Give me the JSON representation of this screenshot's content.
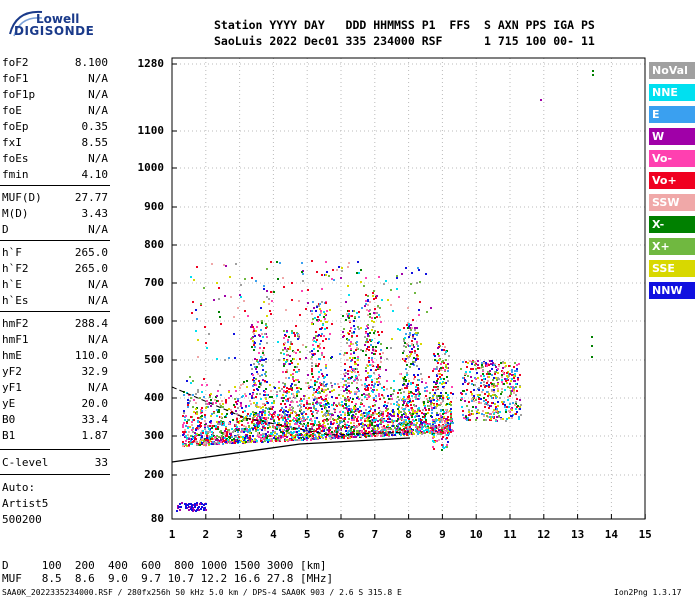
{
  "logo": {
    "line1": "Lowell",
    "line2": "DIGISONDE"
  },
  "header": {
    "row1": "Station YYYY DAY   DDD HHMMSS P1  FFS  S AXN PPS IGA PS",
    "row2": "SaoLuis 2022 Dec01 335 234000 RSF      1 715 100 00- 11"
  },
  "params": [
    {
      "k": "foF2",
      "v": "8.100"
    },
    {
      "k": "foF1",
      "v": "N/A"
    },
    {
      "k": "foF1p",
      "v": "N/A"
    },
    {
      "k": "foE",
      "v": "N/A"
    },
    {
      "k": "foEp",
      "v": "0.35"
    },
    {
      "k": "fxI",
      "v": "8.55"
    },
    {
      "k": "foEs",
      "v": "N/A"
    },
    {
      "k": "fmin",
      "v": "4.10"
    },
    {
      "k": "MUF(D)",
      "v": "27.77"
    },
    {
      "k": "M(D)",
      "v": "3.43"
    },
    {
      "k": "D",
      "v": "N/A"
    },
    {
      "k": "h`F",
      "v": "265.0"
    },
    {
      "k": "h`F2",
      "v": "265.0"
    },
    {
      "k": "h`E",
      "v": "N/A"
    },
    {
      "k": "h`Es",
      "v": "N/A"
    },
    {
      "k": "hmF2",
      "v": "288.4"
    },
    {
      "k": "hmF1",
      "v": "N/A"
    },
    {
      "k": "hmE",
      "v": "110.0"
    },
    {
      "k": "yF2",
      "v": "32.9"
    },
    {
      "k": "yF1",
      "v": "N/A"
    },
    {
      "k": "yE",
      "v": "20.0"
    },
    {
      "k": "B0",
      "v": "33.4"
    },
    {
      "k": "B1",
      "v": "1.87"
    },
    {
      "k": "C-level",
      "v": "33"
    }
  ],
  "auto": {
    "line1": "Auto:",
    "line2": "Artist5",
    "line3": "500200"
  },
  "legend": [
    {
      "label": "NoVal",
      "color": "#a0a0a0"
    },
    {
      "label": "NNE",
      "color": "#00e0f0"
    },
    {
      "label": "E",
      "color": "#3aa0f0"
    },
    {
      "label": "W",
      "color": "#a000a8"
    },
    {
      "label": "Vo-",
      "color": "#ff40b0"
    },
    {
      "label": "Vo+",
      "color": "#f00020"
    },
    {
      "label": "SSW",
      "color": "#f0a8a8"
    },
    {
      "label": "X-",
      "color": "#008000"
    },
    {
      "label": "X+",
      "color": "#70b840"
    },
    {
      "label": "SSE",
      "color": "#d8d800"
    },
    {
      "label": "NNW",
      "color": "#1010e0"
    }
  ],
  "axes": {
    "y_ticks": [
      "1280",
      "1100",
      "1000",
      "900",
      "800",
      "700",
      "600",
      "500",
      "400",
      "300",
      "200",
      "80"
    ],
    "x_ticks": [
      "1",
      "2",
      "3",
      "4",
      "5",
      "6",
      "7",
      "8",
      "9",
      "10",
      "11",
      "12",
      "13",
      "14",
      "15"
    ]
  },
  "bottom": {
    "d_row": "D     100  200  400  600  800 1000 1500 3000 [km]",
    "muf_row": "MUF   8.5  8.6  9.0  9.7 10.7 12.2 16.6 27.8 [MHz]"
  },
  "footer": {
    "left": "SAA0K_2022335234000.RSF / 280fx256h 50 kHz 5.0 km / DPS-4 SAA0K 903 / 2.6 S 315.8 E",
    "right": "Ion2Png 1.3.17"
  }
}
